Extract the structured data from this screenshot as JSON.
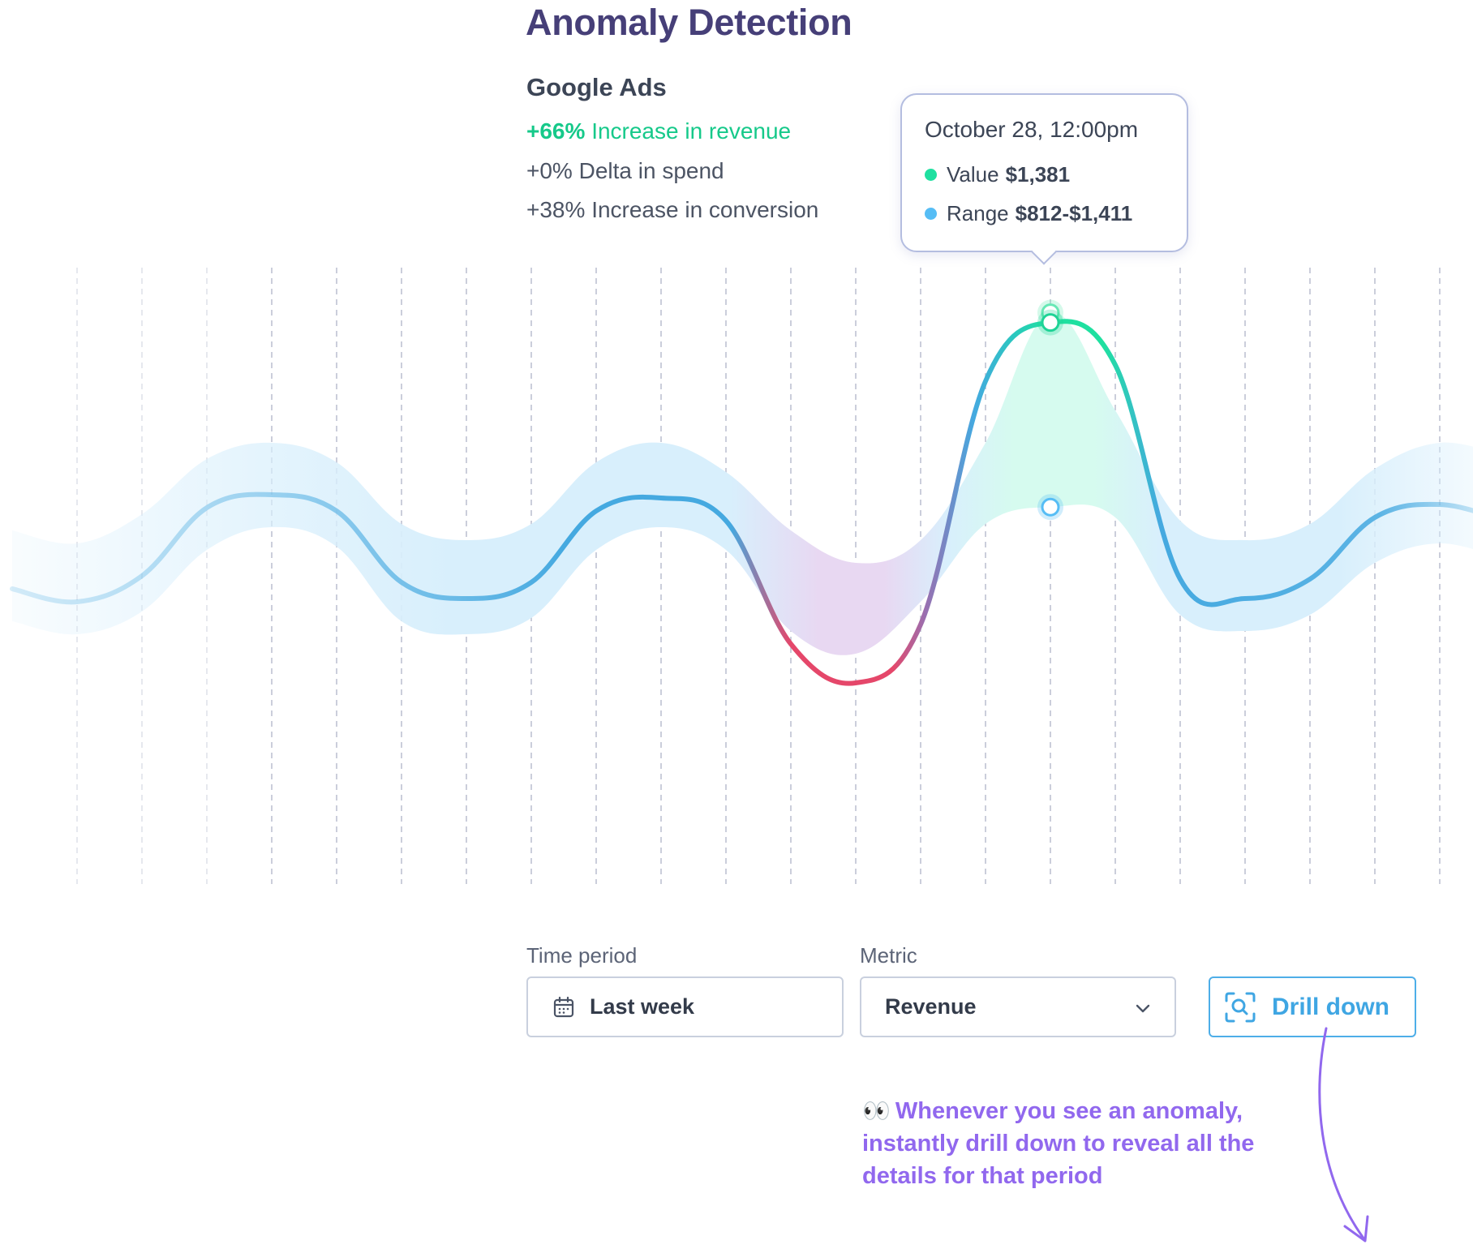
{
  "header": {
    "title": "Anomaly Detection",
    "source": "Google Ads",
    "stats": [
      {
        "value": "+66%",
        "text": "Increase in revenue"
      },
      {
        "value": "+0%",
        "text": "Delta in spend"
      },
      {
        "value": "+38%",
        "text": "Increase in conversion"
      }
    ]
  },
  "tooltip": {
    "date": "October 28, 12:00pm",
    "value_label": "Value",
    "value": "$1,381",
    "range_label": "Range",
    "range": "$812-$1,411"
  },
  "controls": {
    "time_period_label": "Time period",
    "time_period_value": "Last week",
    "metric_label": "Metric",
    "metric_value": "Revenue",
    "drill_button": "Drill down"
  },
  "note": {
    "emoji": "👀",
    "text": "Whenever you see an anomaly, instantly drill down to reveal all the details for that period"
  },
  "colors": {
    "title": "#463f78",
    "revenue_positive": "#16c98a",
    "line_normal": "#45a9e0",
    "line_anomaly_high": "#1fe0a0",
    "line_anomaly_low": "#e5476a",
    "band_normal": "#d8effc",
    "band_high": "#d6fbef",
    "band_low": "#e8d8f2",
    "accent": "#3fa6e3",
    "note": "#9168ee"
  },
  "chart_data": {
    "type": "line",
    "title": "",
    "xlabel": "",
    "ylabel": "",
    "ylim": [
      0,
      1500
    ],
    "grid": "vertical dashed",
    "x": [
      0,
      1,
      2,
      3,
      4,
      5,
      6,
      7,
      8,
      9,
      10,
      11,
      12,
      13,
      14,
      15,
      16,
      17,
      18,
      19,
      20,
      21,
      22,
      23
    ],
    "series": [
      {
        "role": "value",
        "values": [
          560,
          520,
          600,
          810,
          850,
          800,
          580,
          530,
          580,
          800,
          840,
          770,
          390,
          270,
          450,
          1200,
          1381,
          1250,
          590,
          530,
          590,
          780,
          820,
          770
        ],
        "anomalies": [
          {
            "x": 16,
            "value": 1381,
            "kind": "high"
          },
          {
            "x": 13,
            "value": 270,
            "kind": "low"
          }
        ]
      },
      {
        "role": "range_upper",
        "values": [
          740,
          700,
          790,
          960,
          1010,
          950,
          760,
          710,
          760,
          950,
          1010,
          920,
          740,
          640,
          710,
          1010,
          1411,
          1110,
          770,
          710,
          760,
          930,
          1010,
          970
        ]
      },
      {
        "role": "range_lower",
        "values": [
          460,
          420,
          490,
          680,
          750,
          690,
          460,
          420,
          470,
          680,
          750,
          680,
          430,
          360,
          520,
          760,
          812,
          780,
          480,
          430,
          480,
          640,
          700,
          650
        ]
      }
    ],
    "selected_index": 16
  }
}
